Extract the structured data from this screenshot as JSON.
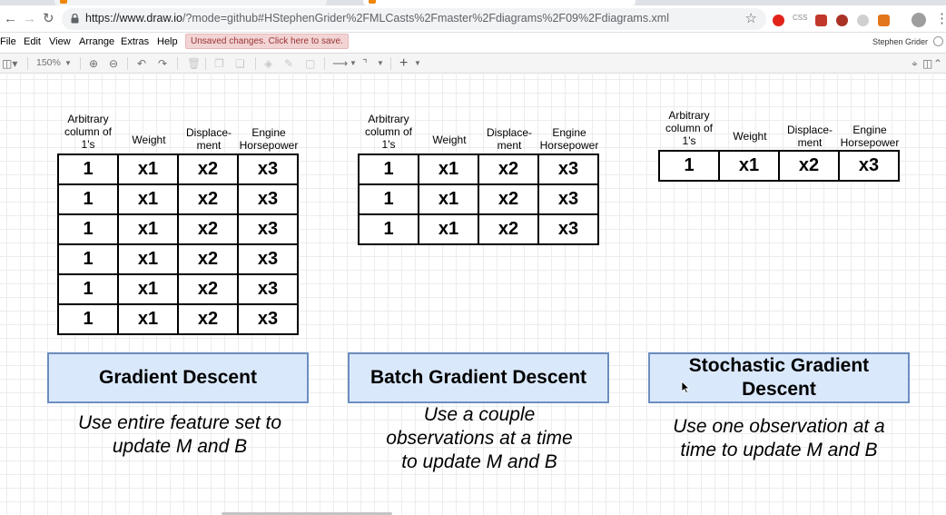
{
  "browser": {
    "url_host": "https://www.draw.io",
    "url_path": "/?mode=github#HStephenGrider%2FMLCasts%2Fmaster%2Fdiagrams%2F09%2Fdiagrams.xml",
    "ext_badge": "CSS"
  },
  "menu": {
    "items": [
      "File",
      "Edit",
      "View",
      "Arrange",
      "Extras",
      "Help"
    ],
    "unsaved": "Unsaved changes. Click here to save.",
    "user": "Stephen Grider"
  },
  "toolbar": {
    "zoom": "150%"
  },
  "diagrams": [
    {
      "headers": [
        "Arbitrary column of 1's",
        "Weight",
        "Displace- ment",
        "Engine Horsepower"
      ],
      "rows": [
        [
          "1",
          "x1",
          "x2",
          "x3"
        ],
        [
          "1",
          "x1",
          "x2",
          "x3"
        ],
        [
          "1",
          "x1",
          "x2",
          "x3"
        ],
        [
          "1",
          "x1",
          "x2",
          "x3"
        ],
        [
          "1",
          "x1",
          "x2",
          "x3"
        ],
        [
          "1",
          "x1",
          "x2",
          "x3"
        ]
      ],
      "title": "Gradient Descent",
      "description": "Use entire feature set to update M and B"
    },
    {
      "headers": [
        "Arbitrary column of 1's",
        "Weight",
        "Displace- ment",
        "Engine Horsepower"
      ],
      "rows": [
        [
          "1",
          "x1",
          "x2",
          "x3"
        ],
        [
          "1",
          "x1",
          "x2",
          "x3"
        ],
        [
          "1",
          "x1",
          "x2",
          "x3"
        ]
      ],
      "title": "Batch Gradient Descent",
      "description": "Use a couple observations at a time to update M and B"
    },
    {
      "headers": [
        "Arbitrary column of 1's",
        "Weight",
        "Displace- ment",
        "Engine Horsepower"
      ],
      "rows": [
        [
          "1",
          "x1",
          "x2",
          "x3"
        ]
      ],
      "title": "Stochastic Gradient Descent",
      "description": "Use one observation at a time to update M and B"
    }
  ],
  "colors": {
    "card_fill": "#dae8fc",
    "card_border": "#6c8ebf",
    "unsaved_bg": "#f2d4d4"
  }
}
